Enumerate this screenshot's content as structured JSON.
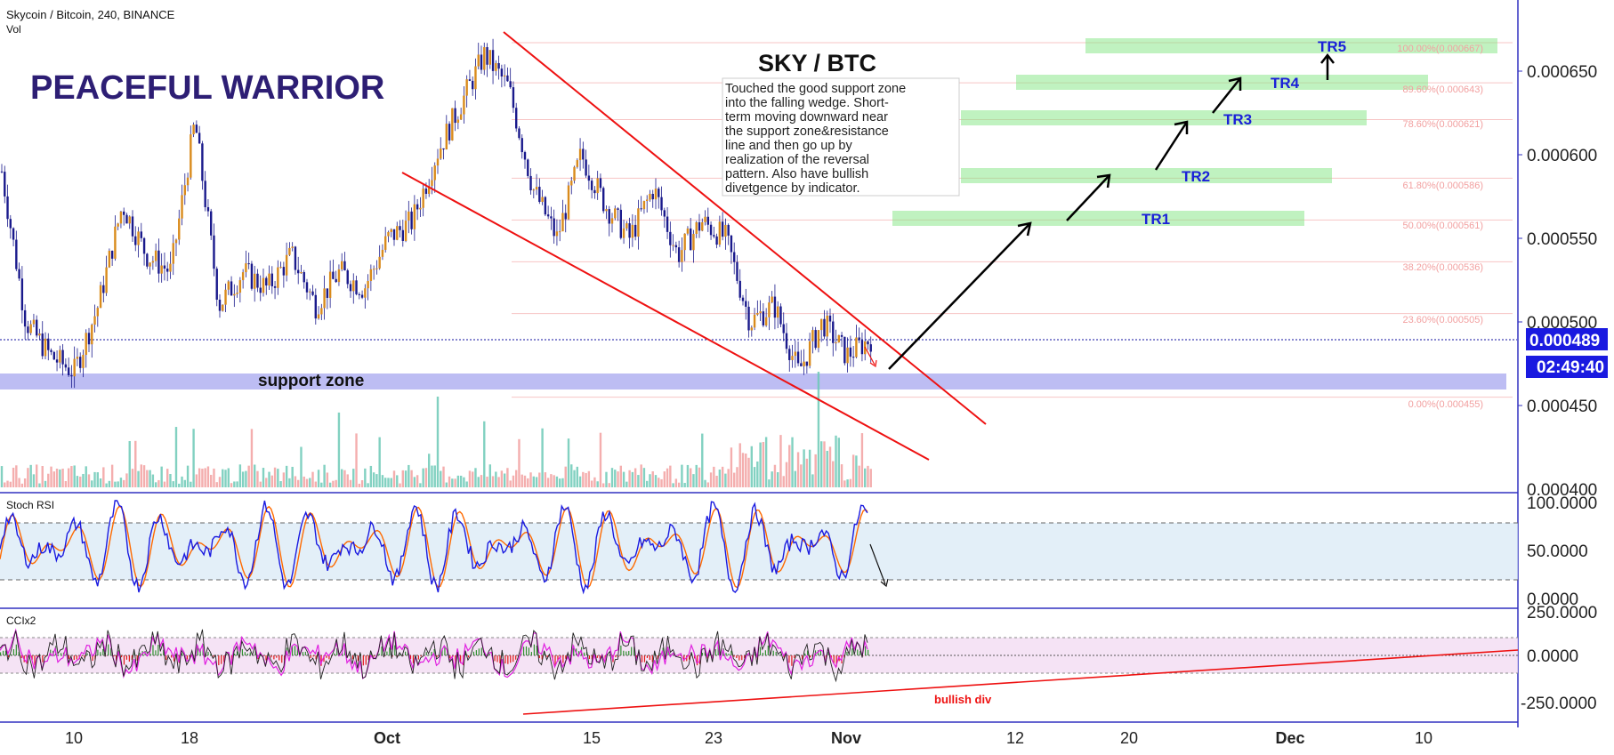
{
  "header": {
    "symbol_line": "Skycoin / Bitcoin, 240, BINANCE",
    "vol_label": "Vol"
  },
  "branding": {
    "author": "PEACEFUL WARRIOR"
  },
  "chart_title": "SKY / BTC",
  "note": "Touched the good support zone into the falling wedge. Short-term moving downward near the support zone&resistance line and then go up by realization of the reversal pattern. Also have bullish divetgence by indicator.",
  "note_lines": [
    "Touched the good support zone",
    "into the falling wedge. Short-",
    "term moving downward near",
    "the support zone&resistance",
    "line and then go up by",
    "realization of the reversal",
    "pattern. Also have bullish",
    "divetgence by indicator."
  ],
  "support_label": "support zone",
  "targets": [
    "TR1",
    "TR2",
    "TR3",
    "TR4",
    "TR5"
  ],
  "fib_labels": [
    "100.00%(0.000667)",
    "89.60%(0.000643)",
    "78.60%(0.000621)",
    "61.80%(0.000586)",
    "50.00%(0.000561)",
    "38.20%(0.000536)",
    "23.60%(0.000505)",
    "0.00%(0.000455)"
  ],
  "price_badge": {
    "price": "0.000489",
    "countdown": "02:49:40"
  },
  "panels": {
    "stoch": {
      "label": "Stoch RSI",
      "ticks": [
        "100.0000",
        "50.0000",
        "0.0000"
      ]
    },
    "cci": {
      "label": "CCIx2",
      "ticks": [
        "250.0000",
        "0.0000",
        "-250.0000"
      ],
      "annotation": "bullish div"
    }
  },
  "colors": {
    "accent_blue": "#0000ee",
    "wedge_red": "#ee1111",
    "candle_up": "#d98b1c",
    "candle_down": "#1a1a8c",
    "target_green": "#7de07d",
    "support_band": "#b9b9f2",
    "author_purple": "#2d1e74"
  },
  "chart_data": {
    "type": "candlestick",
    "title": "SKY / BTC",
    "price_axis_ticks": [
      "0.000650",
      "0.000600",
      "0.000550",
      "0.000500",
      "0.000450",
      "0.000400"
    ],
    "x_ticks": [
      "10",
      "18",
      "Oct",
      "15",
      "23",
      "Nov",
      "12",
      "20",
      "Dec",
      "10"
    ],
    "current_price": 0.000489,
    "support_zone": [
      0.00046,
      0.00047
    ],
    "fibonacci_levels": [
      {
        "pct": 100.0,
        "price": 0.000667
      },
      {
        "pct": 89.6,
        "price": 0.000643
      },
      {
        "pct": 78.6,
        "price": 0.000621
      },
      {
        "pct": 61.8,
        "price": 0.000586
      },
      {
        "pct": 50.0,
        "price": 0.000561
      },
      {
        "pct": 38.2,
        "price": 0.000536
      },
      {
        "pct": 23.6,
        "price": 0.000505
      },
      {
        "pct": 0.0,
        "price": 0.000455
      }
    ],
    "targets": [
      {
        "name": "TR1",
        "price": 0.000561
      },
      {
        "name": "TR2",
        "price": 0.000586
      },
      {
        "name": "TR3",
        "price": 0.000621
      },
      {
        "name": "TR4",
        "price": 0.000643
      },
      {
        "name": "TR5",
        "price": 0.000667
      }
    ],
    "price_path": [
      0.00059,
      0.0005,
      0.00048,
      0.00047,
      0.00051,
      0.00057,
      0.00054,
      0.00053,
      0.00062,
      0.00051,
      0.00053,
      0.00052,
      0.00054,
      0.00051,
      0.00053,
      0.00052,
      0.00055,
      0.00056,
      0.0006,
      0.00063,
      0.00066,
      0.00064,
      0.00058,
      0.00055,
      0.0006,
      0.00057,
      0.00055,
      0.00058,
      0.00054,
      0.00056,
      0.00055,
      0.0005,
      0.00051,
      0.00047,
      0.0005,
      0.00048,
      0.00049
    ],
    "stoch_rsi": {
      "ylim": [
        0,
        100
      ],
      "bands": [
        20,
        80
      ]
    },
    "cci": {
      "ylim": [
        -250,
        250
      ],
      "bands": [
        -100,
        100
      ]
    }
  }
}
